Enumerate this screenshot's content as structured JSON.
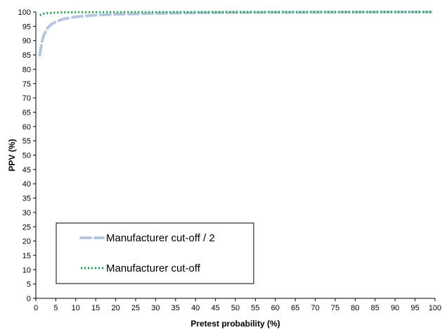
{
  "chart_data": {
    "type": "line",
    "title": "",
    "xlabel": "Pretest probability (%)",
    "ylabel": "PPV (%)",
    "xlim": [
      0,
      100
    ],
    "ylim": [
      0,
      100
    ],
    "x_ticks": [
      0,
      5,
      10,
      15,
      20,
      25,
      30,
      35,
      40,
      45,
      50,
      55,
      60,
      65,
      70,
      75,
      80,
      85,
      90,
      95,
      100
    ],
    "y_ticks": [
      0,
      5,
      10,
      15,
      20,
      25,
      30,
      35,
      40,
      45,
      50,
      55,
      60,
      65,
      70,
      75,
      80,
      85,
      90,
      95,
      100
    ],
    "grid": false,
    "legend_position": "bottom-left",
    "series": [
      {
        "name": "Manufacturer cut-off / 2",
        "color": "#b4c6e0",
        "style": "dashed",
        "x": [
          1,
          1.5,
          2,
          3,
          4,
          5,
          7,
          10,
          15,
          20,
          30,
          40,
          50,
          60,
          70,
          80,
          90,
          99
        ],
        "y": [
          84.9,
          89.5,
          91.9,
          94.5,
          95.8,
          96.6,
          97.6,
          98.3,
          98.9,
          99.2,
          99.5,
          99.7,
          99.8,
          99.85,
          99.9,
          99.93,
          99.97,
          99.99
        ]
      },
      {
        "name": "Manufacturer cut-off",
        "color": "#1aa34a",
        "style": "dotted",
        "x": [
          1,
          2,
          3,
          5,
          10,
          20,
          30,
          50,
          70,
          90,
          99
        ],
        "y": [
          98.9,
          99.4,
          99.6,
          99.8,
          99.9,
          99.95,
          99.97,
          99.99,
          100,
          100,
          100
        ]
      }
    ]
  }
}
